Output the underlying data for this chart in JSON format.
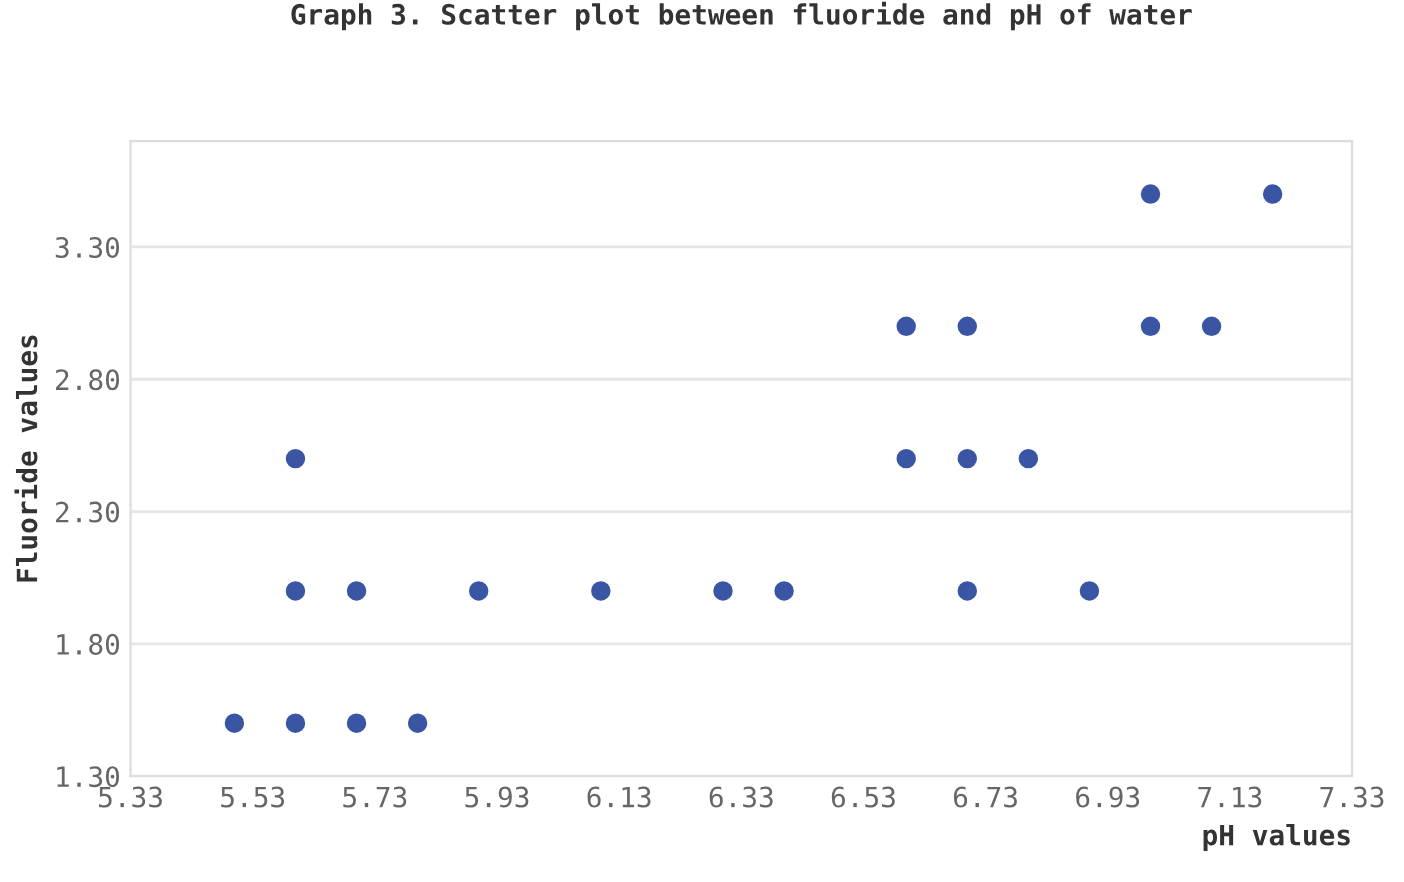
{
  "chart_data": {
    "type": "scatter",
    "title": "Graph 3. Scatter plot between fluoride and pH of water",
    "xlabel": "pH values",
    "ylabel": "Fluoride values",
    "series": [
      {
        "color": "#3a55a4",
        "x": [
          5.5,
          5.6,
          5.7,
          5.8,
          5.6,
          5.6,
          5.7,
          5.9,
          6.1,
          6.3,
          6.4,
          6.6,
          6.6,
          6.7,
          6.7,
          6.7,
          6.8,
          6.9,
          7.0,
          7.0,
          7.1,
          7.2
        ],
        "values": [
          1.5,
          1.5,
          1.5,
          1.5,
          2.5,
          2.0,
          2.0,
          2.0,
          2.0,
          2.0,
          2.0,
          3.0,
          2.5,
          3.0,
          2.5,
          2.0,
          2.5,
          2.0,
          3.5,
          3.0,
          3.0,
          3.5
        ]
      }
    ],
    "xlim": [
      5.33,
      7.33
    ],
    "xticks": [
      {
        "value": 5.33,
        "label": "5.33"
      },
      {
        "value": 5.53,
        "label": "5.53"
      },
      {
        "value": 5.73,
        "label": "5.73"
      },
      {
        "value": 5.93,
        "label": "5.93"
      },
      {
        "value": 6.13,
        "label": "6.13"
      },
      {
        "value": 6.33,
        "label": "6.33"
      },
      {
        "value": 6.53,
        "label": "6.53"
      },
      {
        "value": 6.73,
        "label": "6.73"
      },
      {
        "value": 6.93,
        "label": "6.93"
      },
      {
        "value": 7.13,
        "label": "7.13"
      },
      {
        "value": 7.33,
        "label": "7.33"
      }
    ],
    "ylim": [
      1.3,
      3.7
    ],
    "yticks": [
      {
        "value": 1.3,
        "label": "1.30"
      },
      {
        "value": 1.8,
        "label": "1.80"
      },
      {
        "value": 2.3,
        "label": "2.30"
      },
      {
        "value": 2.8,
        "label": "2.80"
      },
      {
        "value": 3.3,
        "label": "3.30"
      }
    ],
    "grid": "y",
    "marker": "circle"
  }
}
